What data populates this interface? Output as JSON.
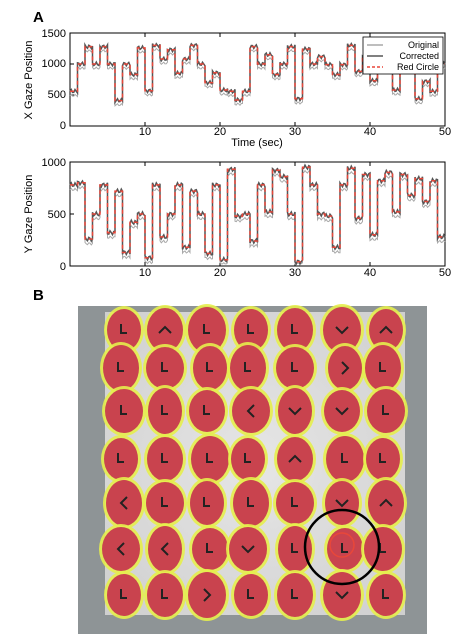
{
  "panels": {
    "a_label": "A",
    "b_label": "B"
  },
  "chart_data": [
    {
      "type": "line",
      "panel": "A",
      "xlabel": "Time (sec)",
      "ylabel": "X Gaze Position",
      "xlim": [
        0,
        50
      ],
      "ylim": [
        0,
        1500
      ],
      "xticks": [
        "10",
        "20",
        "30",
        "40",
        "50"
      ],
      "yticks": [
        "0",
        "500",
        "1000",
        "1500"
      ],
      "legend_position": "top-right",
      "legend": [
        "Original",
        "Corrected",
        "Red Circle"
      ],
      "colors": {
        "original": "#a9a9a9",
        "corrected": "#555555",
        "red_circle": "#e8473a"
      },
      "steps": [
        [
          0,
          560
        ],
        [
          1,
          1000
        ],
        [
          2,
          1280
        ],
        [
          3,
          1000
        ],
        [
          4,
          1280
        ],
        [
          5,
          1000
        ],
        [
          6,
          410
        ],
        [
          7,
          1000
        ],
        [
          8,
          830
        ],
        [
          9,
          1260
        ],
        [
          10,
          570
        ],
        [
          11,
          1300
        ],
        [
          12,
          1080
        ],
        [
          13,
          1230
        ],
        [
          14,
          850
        ],
        [
          15,
          1080
        ],
        [
          16,
          1300
        ],
        [
          17,
          1000
        ],
        [
          18,
          700
        ],
        [
          19,
          860
        ],
        [
          20,
          580
        ],
        [
          21,
          560
        ],
        [
          22,
          420
        ],
        [
          23,
          560
        ],
        [
          24,
          1280
        ],
        [
          25,
          1000
        ],
        [
          26,
          1150
        ],
        [
          27,
          830
        ],
        [
          28,
          1000
        ],
        [
          29,
          1280
        ],
        [
          30,
          440
        ],
        [
          31,
          1240
        ],
        [
          32,
          1000
        ],
        [
          33,
          1120
        ],
        [
          34,
          990
        ],
        [
          35,
          830
        ],
        [
          36,
          990
        ],
        [
          37,
          1300
        ],
        [
          38,
          880
        ],
        [
          39,
          1140
        ],
        [
          40,
          730
        ],
        [
          41,
          1290
        ],
        [
          42,
          1000
        ],
        [
          43,
          580
        ],
        [
          44,
          1000
        ],
        [
          45,
          1000
        ],
        [
          46,
          440
        ],
        [
          47,
          720
        ],
        [
          48,
          560
        ],
        [
          49,
          1000
        ],
        [
          50,
          1000
        ]
      ]
    },
    {
      "type": "line",
      "panel": "A",
      "xlabel": "",
      "ylabel": "Y Gaze Position",
      "xlim": [
        0,
        50
      ],
      "ylim": [
        0,
        1000
      ],
      "xticks": [
        "10",
        "20",
        "30",
        "40",
        "50"
      ],
      "yticks": [
        "0",
        "500",
        "1000"
      ],
      "colors": {
        "original": "#a9a9a9",
        "corrected": "#555555",
        "red_circle": "#e8473a"
      },
      "steps": [
        [
          0,
          780
        ],
        [
          1,
          800
        ],
        [
          2,
          260
        ],
        [
          3,
          500
        ],
        [
          4,
          780
        ],
        [
          5,
          320
        ],
        [
          6,
          720
        ],
        [
          7,
          130
        ],
        [
          8,
          420
        ],
        [
          9,
          500
        ],
        [
          10,
          80
        ],
        [
          11,
          780
        ],
        [
          12,
          280
        ],
        [
          13,
          500
        ],
        [
          14,
          780
        ],
        [
          15,
          180
        ],
        [
          16,
          720
        ],
        [
          17,
          500
        ],
        [
          18,
          120
        ],
        [
          19,
          780
        ],
        [
          20,
          60
        ],
        [
          21,
          930
        ],
        [
          22,
          480
        ],
        [
          23,
          500
        ],
        [
          24,
          240
        ],
        [
          25,
          780
        ],
        [
          26,
          520
        ],
        [
          27,
          920
        ],
        [
          28,
          860
        ],
        [
          29,
          500
        ],
        [
          30,
          40
        ],
        [
          31,
          950
        ],
        [
          32,
          780
        ],
        [
          33,
          500
        ],
        [
          34,
          480
        ],
        [
          35,
          180
        ],
        [
          36,
          780
        ],
        [
          37,
          940
        ],
        [
          38,
          460
        ],
        [
          39,
          880
        ],
        [
          40,
          300
        ],
        [
          41,
          820
        ],
        [
          42,
          900
        ],
        [
          43,
          520
        ],
        [
          44,
          880
        ],
        [
          45,
          680
        ],
        [
          46,
          840
        ],
        [
          47,
          620
        ],
        [
          48,
          820
        ],
        [
          49,
          280
        ],
        [
          50,
          280
        ]
      ]
    }
  ],
  "heatmap": {
    "panel": "B",
    "blob_color": "#c9434e",
    "halo_color": "#e6ee4d",
    "background_color": "#8e9496",
    "screen_color": "#dcdcdc",
    "circle_color": "#000000",
    "symbols": [
      [
        "L",
        "^",
        "L",
        "L",
        "L",
        "v",
        "^"
      ],
      [
        "L",
        "L",
        "L",
        "L",
        "L",
        ">",
        "L"
      ],
      [
        "L",
        "L",
        "L",
        "<",
        "v",
        "v",
        "L"
      ],
      [
        "L",
        "L",
        "L",
        "L",
        "^",
        "L",
        "L"
      ],
      [
        "<",
        "L",
        "L",
        "L",
        "L",
        "v",
        "^"
      ],
      [
        "<",
        "<",
        "L",
        "v",
        "L",
        "L",
        "L"
      ],
      [
        "L",
        "L",
        ">",
        "L",
        "L",
        "v",
        "L"
      ]
    ]
  }
}
